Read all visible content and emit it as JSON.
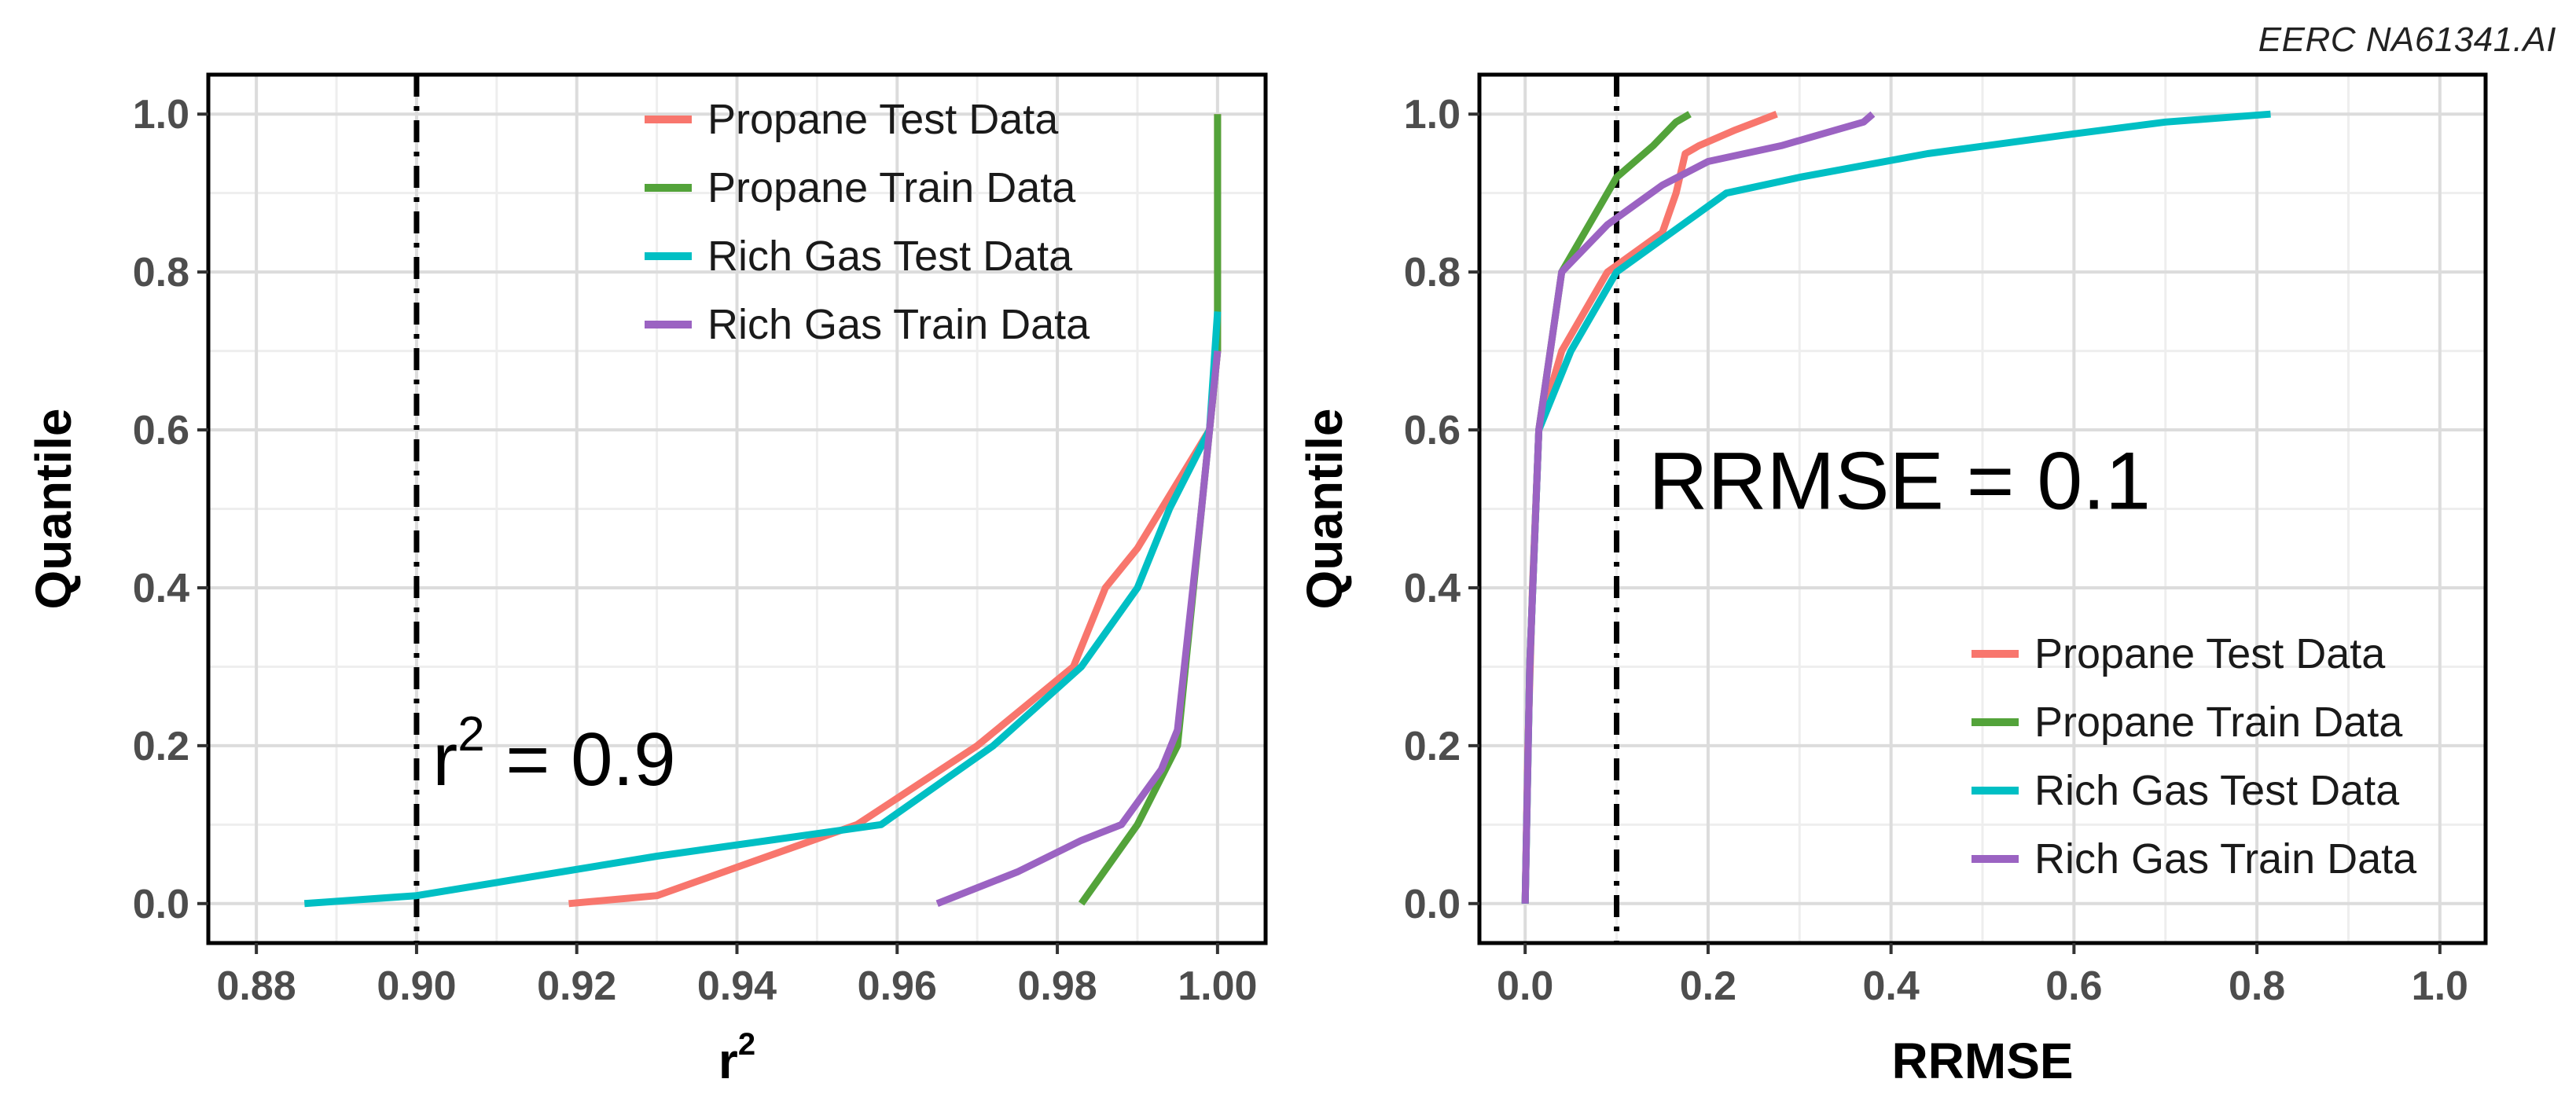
{
  "watermark": "EERC NA61341.AI",
  "colors": {
    "propane_test": "#F8766D",
    "propane_train": "#53A33A",
    "rich_gas_test": "#00BFC4",
    "rich_gas_train": "#9B63C2",
    "panel_bg": "#FFFFFF",
    "grid_major": "#DCDCDC",
    "grid_minor": "#EEEEEE",
    "axis_text": "#4D4D4D",
    "title_text": "#000000"
  },
  "chart_data": [
    {
      "type": "line",
      "id": "left",
      "xlabel": "r",
      "xlabel_superscript": "2",
      "ylabel": "Quantile",
      "xlim": [
        0.874,
        1.006
      ],
      "ylim": [
        -0.05,
        1.05
      ],
      "xticks": [
        0.88,
        0.9,
        0.92,
        0.94,
        0.96,
        0.98,
        1.0
      ],
      "xtick_labels": [
        "0.88",
        "0.90",
        "0.92",
        "0.94",
        "0.96",
        "0.98",
        "1.00"
      ],
      "yticks": [
        0.0,
        0.2,
        0.4,
        0.6,
        0.8,
        1.0
      ],
      "ytick_labels": [
        "0.0",
        "0.2",
        "0.4",
        "0.6",
        "0.8",
        "1.0"
      ],
      "legend_position": "top-right",
      "reference_line": {
        "axis": "x",
        "value": 0.9,
        "style": "dash-dot"
      },
      "annotation": {
        "base": "r",
        "superscript": "2",
        "rest": " = 0.9",
        "x": 0.902,
        "y": 0.15
      },
      "series": [
        {
          "name": "Propane Test Data",
          "color_key": "propane_test",
          "x": [
            0.919,
            0.93,
            0.955,
            0.97,
            0.982,
            0.986,
            0.99,
            0.999,
            1.0,
            1.0
          ],
          "y": [
            0.0,
            0.01,
            0.1,
            0.2,
            0.3,
            0.4,
            0.45,
            0.6,
            0.7,
            1.0
          ]
        },
        {
          "name": "Propane Train Data",
          "color_key": "propane_train",
          "x": [
            0.983,
            0.99,
            0.995,
            0.998,
            1.0,
            1.0
          ],
          "y": [
            0.0,
            0.1,
            0.2,
            0.5,
            0.7,
            1.0
          ]
        },
        {
          "name": "Rich Gas Test Data",
          "color_key": "rich_gas_test",
          "x": [
            0.886,
            0.9,
            0.93,
            0.958,
            0.972,
            0.983,
            0.99,
            0.994,
            0.999,
            1.0
          ],
          "y": [
            0.0,
            0.01,
            0.06,
            0.1,
            0.2,
            0.3,
            0.4,
            0.5,
            0.6,
            0.75
          ]
        },
        {
          "name": "Rich Gas Train Data",
          "color_key": "rich_gas_train",
          "x": [
            0.965,
            0.975,
            0.983,
            0.988,
            0.993,
            0.995,
            0.998,
            1.0
          ],
          "y": [
            0.0,
            0.04,
            0.08,
            0.1,
            0.17,
            0.22,
            0.5,
            0.7
          ]
        }
      ]
    },
    {
      "type": "line",
      "id": "right",
      "xlabel": "RRMSE",
      "ylabel": "Quantile",
      "xlim": [
        -0.05,
        1.05
      ],
      "ylim": [
        -0.05,
        1.05
      ],
      "xticks": [
        0.0,
        0.2,
        0.4,
        0.6,
        0.8,
        1.0
      ],
      "xtick_labels": [
        "0.0",
        "0.2",
        "0.4",
        "0.6",
        "0.8",
        "1.0"
      ],
      "yticks": [
        0.0,
        0.2,
        0.4,
        0.6,
        0.8,
        1.0
      ],
      "ytick_labels": [
        "0.0",
        "0.2",
        "0.4",
        "0.6",
        "0.8",
        "1.0"
      ],
      "legend_position": "bottom-right",
      "reference_line": {
        "axis": "x",
        "value": 0.1,
        "style": "dash-dot"
      },
      "annotation": {
        "base": "RRMSE = 0.1",
        "superscript": "",
        "rest": "",
        "x": 0.135,
        "y": 0.5
      },
      "series": [
        {
          "name": "Propane Test Data",
          "color_key": "propane_test",
          "x": [
            0.0,
            0.003,
            0.008,
            0.015,
            0.04,
            0.09,
            0.15,
            0.165,
            0.175,
            0.19,
            0.23,
            0.275
          ],
          "y": [
            0.0,
            0.2,
            0.4,
            0.6,
            0.7,
            0.8,
            0.85,
            0.9,
            0.95,
            0.96,
            0.98,
            1.0
          ]
        },
        {
          "name": "Propane Train Data",
          "color_key": "propane_train",
          "x": [
            0.0,
            0.005,
            0.015,
            0.04,
            0.08,
            0.1,
            0.14,
            0.165,
            0.18
          ],
          "y": [
            0.0,
            0.3,
            0.6,
            0.8,
            0.88,
            0.92,
            0.96,
            0.99,
            1.0
          ]
        },
        {
          "name": "Rich Gas Test Data",
          "color_key": "rich_gas_test",
          "x": [
            0.0,
            0.005,
            0.015,
            0.05,
            0.1,
            0.16,
            0.22,
            0.3,
            0.44,
            0.6,
            0.7,
            0.815
          ],
          "y": [
            0.0,
            0.3,
            0.6,
            0.7,
            0.8,
            0.85,
            0.9,
            0.92,
            0.95,
            0.975,
            0.99,
            1.0
          ]
        },
        {
          "name": "Rich Gas Train Data",
          "color_key": "rich_gas_train",
          "x": [
            0.0,
            0.005,
            0.015,
            0.04,
            0.09,
            0.15,
            0.2,
            0.28,
            0.34,
            0.37,
            0.38
          ],
          "y": [
            0.0,
            0.3,
            0.6,
            0.8,
            0.86,
            0.91,
            0.94,
            0.96,
            0.98,
            0.99,
            1.0
          ]
        }
      ]
    }
  ]
}
